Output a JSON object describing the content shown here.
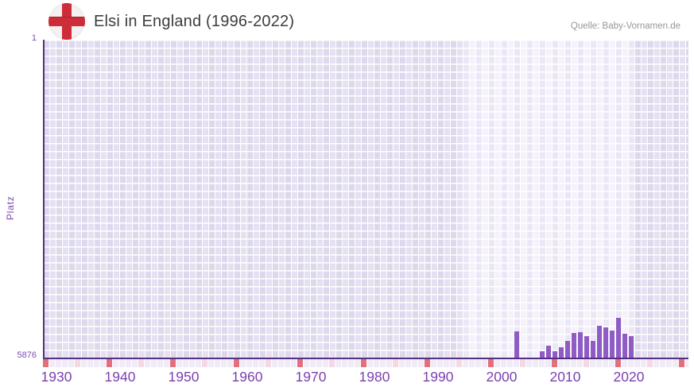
{
  "header": {
    "title": "Elsi in England (1996-2022)",
    "source": "Quelle: Baby-Vornamen.de",
    "flag_icon": "england-flag-icon"
  },
  "colors": {
    "bar": "#8f5cc6",
    "axis": "#55307f",
    "tick_label": "#7b3fb1",
    "decade_marker_red": "#e0707c",
    "mid_decade_marker_pink": "#f3d9e3",
    "flag_red": "#cd2c39",
    "flag_circle": "#f3f1f1",
    "grid_dark_a": "#ddd8ec",
    "grid_dark_b": "#e5e0f2",
    "grid_light_a": "#ece7f7",
    "grid_light_b": "#f5f2fb"
  },
  "chart_data": {
    "type": "bar",
    "title": "Elsi in England (1996-2022)",
    "source": "Quelle: Baby-Vornamen.de",
    "xlabel": "",
    "ylabel": "Platz",
    "y_axis": {
      "min": 1,
      "max": 5876,
      "inverted": true,
      "top_tick": "1",
      "bottom_tick": "5876"
    },
    "x_axis": {
      "range_start": 1929.5,
      "range_end": 2031,
      "tick_years": [
        1930,
        1940,
        1950,
        1960,
        1970,
        1980,
        1990,
        2000,
        2010,
        2020
      ],
      "decade_marker_years": [
        1930,
        1940,
        1950,
        1960,
        1970,
        1980,
        1990,
        2000,
        2010,
        2020,
        2030
      ],
      "mid_decade_marker_years": [
        1935,
        1945,
        1955,
        1965,
        1975,
        1985,
        1995,
        2005,
        2015,
        2025
      ]
    },
    "highlight_year_range": [
      1996,
      2022
    ],
    "grid": true,
    "legend": false,
    "series": [
      {
        "name": "Platz",
        "x": [
          2004,
          2008,
          2009,
          2010,
          2011,
          2012,
          2013,
          2014,
          2015,
          2016,
          2017,
          2018,
          2019,
          2020,
          2021,
          2022
        ],
        "y": [
          5390,
          5760,
          5655,
          5760,
          5685,
          5565,
          5420,
          5405,
          5480,
          5565,
          5290,
          5320,
          5375,
          5140,
          5435,
          5480
        ]
      }
    ]
  }
}
